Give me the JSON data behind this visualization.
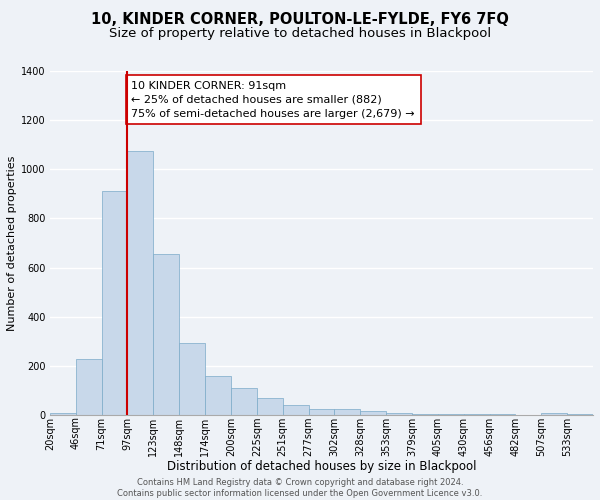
{
  "title": "10, KINDER CORNER, POULTON-LE-FYLDE, FY6 7FQ",
  "subtitle": "Size of property relative to detached houses in Blackpool",
  "xlabel": "Distribution of detached houses by size in Blackpool",
  "ylabel": "Number of detached properties",
  "bar_color": "#c8d8ea",
  "bar_edge_color": "#7aaac8",
  "background_color": "#eef2f7",
  "grid_color": "#ffffff",
  "vline_color": "#cc0000",
  "vline_x_index": 3,
  "bin_labels": [
    "20sqm",
    "46sqm",
    "71sqm",
    "97sqm",
    "123sqm",
    "148sqm",
    "174sqm",
    "200sqm",
    "225sqm",
    "251sqm",
    "277sqm",
    "302sqm",
    "328sqm",
    "353sqm",
    "379sqm",
    "405sqm",
    "430sqm",
    "456sqm",
    "482sqm",
    "507sqm",
    "533sqm"
  ],
  "bar_heights": [
    10,
    228,
    910,
    1075,
    655,
    295,
    158,
    108,
    70,
    40,
    25,
    25,
    17,
    10,
    5,
    5,
    3,
    3,
    0,
    10,
    3
  ],
  "ylim": [
    0,
    1400
  ],
  "yticks": [
    0,
    200,
    400,
    600,
    800,
    1000,
    1200,
    1400
  ],
  "annotation_line1": "10 KINDER CORNER: 91sqm",
  "annotation_line2": "← 25% of detached houses are smaller (882)",
  "annotation_line3": "75% of semi-detached houses are larger (2,679) →",
  "footer_text": "Contains HM Land Registry data © Crown copyright and database right 2024.\nContains public sector information licensed under the Open Government Licence v3.0.",
  "title_fontsize": 10.5,
  "subtitle_fontsize": 9.5,
  "xlabel_fontsize": 8.5,
  "ylabel_fontsize": 8,
  "tick_fontsize": 7,
  "annotation_fontsize": 8,
  "footer_fontsize": 6
}
